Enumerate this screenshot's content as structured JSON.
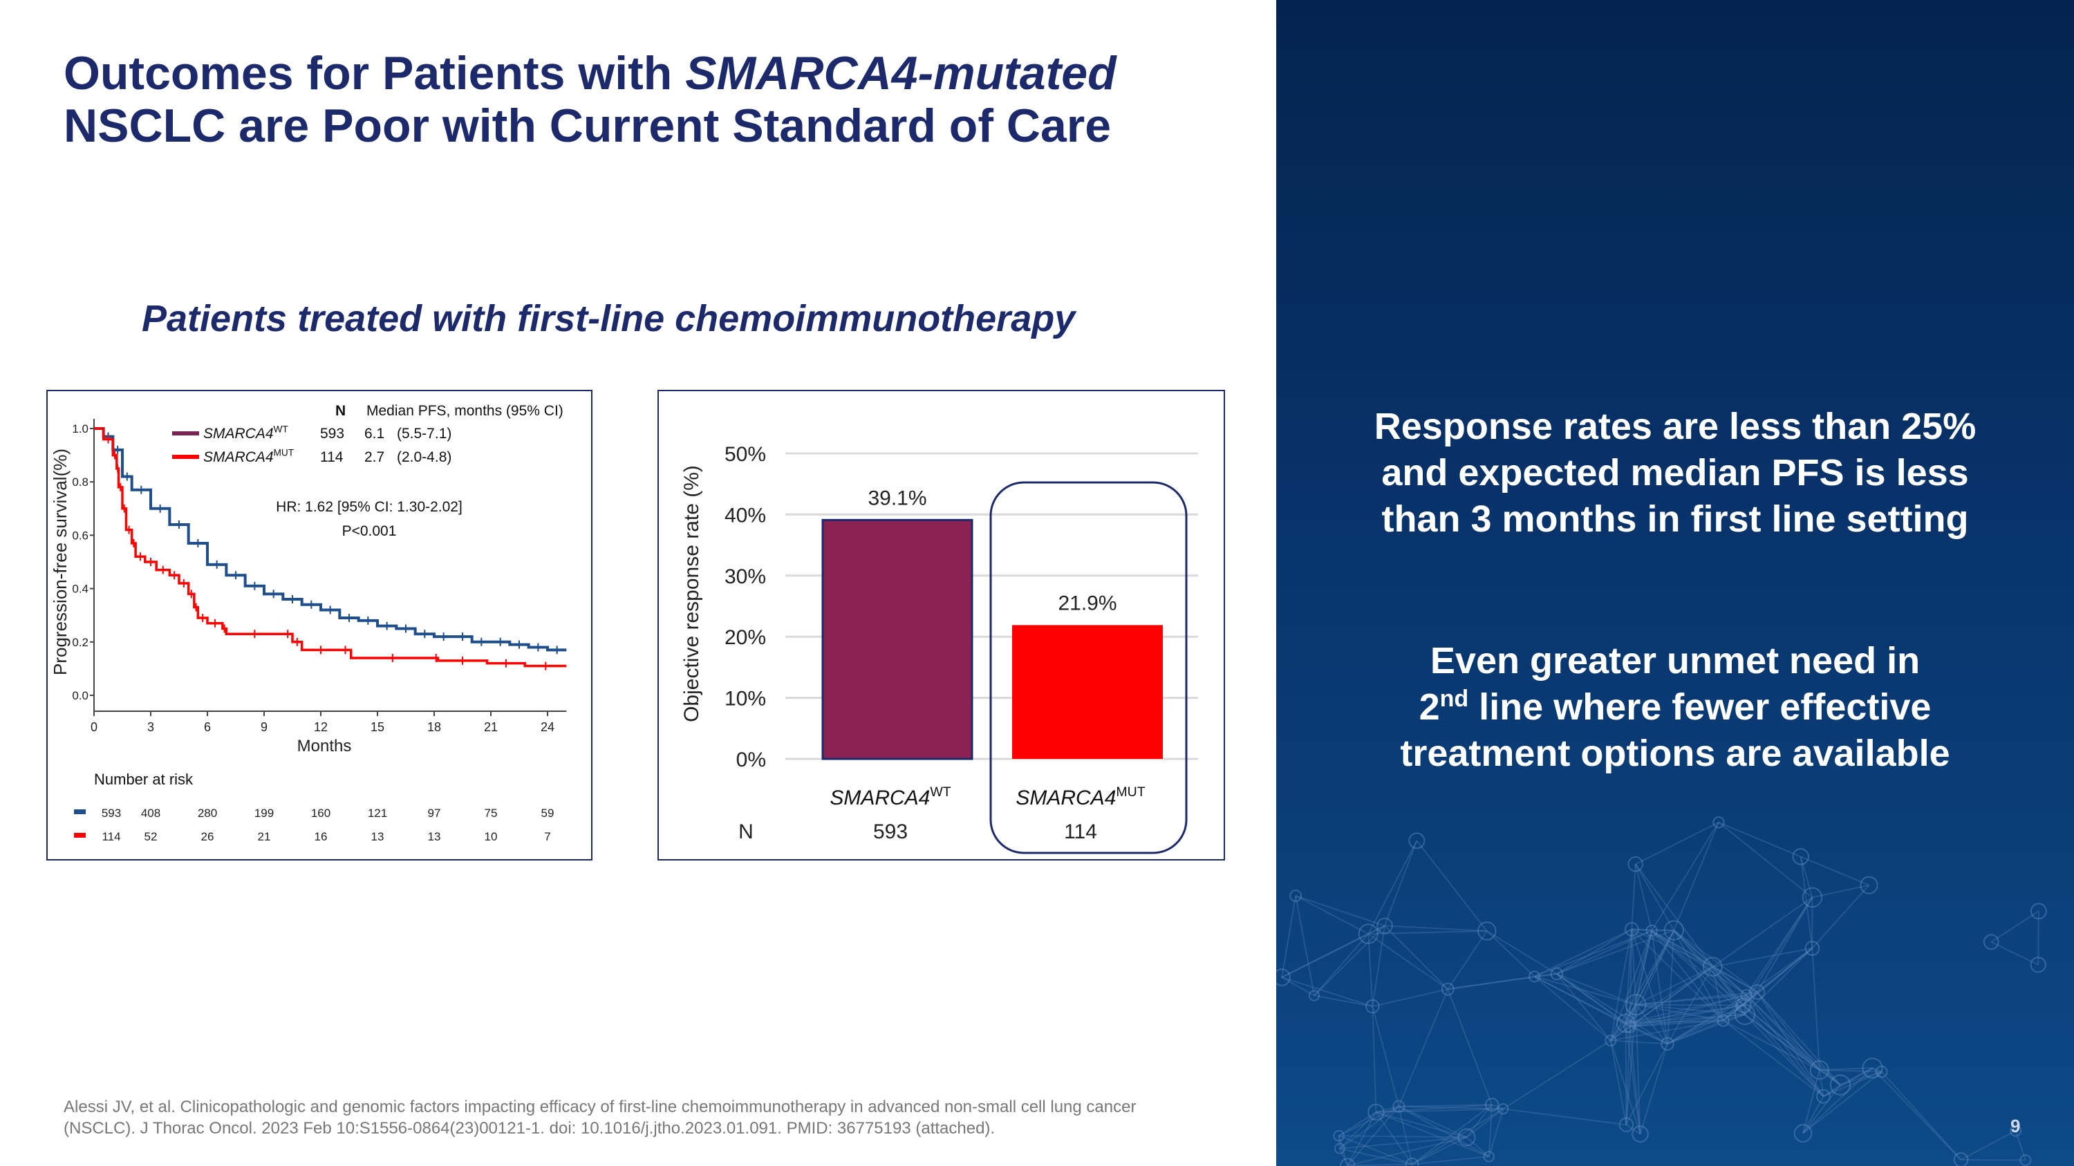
{
  "title": {
    "line1_prefix": "Outcomes for Patients with ",
    "line1_italic": "SMARCA4-mutated",
    "line2": "NSCLC are Poor with Current Standard of Care"
  },
  "subtitle": "Patients treated with first-line chemoimmunotherapy",
  "right_panel": {
    "text1": [
      "Response rates are less than 25%",
      "and expected median PFS is less",
      "than 3 months in first line setting"
    ],
    "text2_line1": "Even greater unmet need in",
    "text2_line2_num": "2",
    "text2_line2_sup": "nd",
    "text2_line2_rest": " line where fewer effective",
    "text2_line3": "treatment options are available"
  },
  "footnote": [
    "Alessi JV, et al. Clinicopathologic and genomic factors impacting efficacy of first-line chemoimmunotherapy in advanced non-small cell lung cancer",
    "(NSCLC). J Thorac Oncol. 2023 Feb 10:S1556-0864(23)00121-1. doi: 10.1016/j.jtho.2023.01.091. PMID: 36775193 (attached)."
  ],
  "page_number": "9",
  "colors": {
    "title": "#1c2a6b",
    "wt_km": "#1f4e8c",
    "wt_bar": "#8b2252",
    "mut": "#ff0000",
    "panel": "#08336b"
  },
  "chart_data": [
    {
      "type": "line",
      "xlabel": "Months",
      "ylabel": "Progression-free survival(%)",
      "xlim": [
        0,
        25
      ],
      "ylim": [
        0,
        1.0
      ],
      "x_ticks": [
        0,
        3,
        6,
        9,
        12,
        15,
        18,
        21,
        24
      ],
      "y_ticks": [
        "0.0",
        "0.2",
        "0.4",
        "0.6",
        "0.8",
        "1.0"
      ],
      "legend": {
        "header_n": "N",
        "header_median": "Median PFS, months (95% CI)",
        "entries": [
          {
            "name": "SMARCA4",
            "sup": "WT",
            "n": "593",
            "median": "6.1",
            "ci": "(5.5-7.1)"
          },
          {
            "name": "SMARCA4",
            "sup": "MUT",
            "n": "114",
            "median": "2.7",
            "ci": "(2.0-4.8)"
          }
        ]
      },
      "annotation": [
        "HR: 1.62 [95% CI: 1.30-2.02]",
        "P<0.001"
      ],
      "series": [
        {
          "name": "SMARCA4 WT",
          "color": "#1f4e8c",
          "x": [
            0,
            0.5,
            1,
            1.5,
            2,
            3,
            4,
            5,
            6,
            7,
            8,
            9,
            10,
            11,
            12,
            13,
            14,
            15,
            16,
            17,
            18,
            19,
            20,
            21,
            22,
            23,
            24,
            25
          ],
          "y": [
            1.0,
            0.97,
            0.92,
            0.82,
            0.77,
            0.7,
            0.64,
            0.57,
            0.49,
            0.45,
            0.41,
            0.38,
            0.36,
            0.34,
            0.32,
            0.29,
            0.28,
            0.26,
            0.25,
            0.23,
            0.22,
            0.22,
            0.2,
            0.2,
            0.19,
            0.18,
            0.17,
            0.17
          ]
        },
        {
          "name": "SMARCA4 MUT",
          "color": "#ff0000",
          "x": [
            0,
            0.5,
            1,
            1.2,
            1.3,
            1.5,
            1.7,
            2,
            2.2,
            2.7,
            3.3,
            4,
            4.5,
            5,
            5.3,
            5.5,
            6,
            6.8,
            7,
            10,
            10.5,
            11,
            13,
            13.6,
            18,
            18.2,
            20.8,
            22.8,
            25
          ],
          "y": [
            1.0,
            0.96,
            0.9,
            0.85,
            0.78,
            0.7,
            0.62,
            0.57,
            0.52,
            0.5,
            0.47,
            0.45,
            0.42,
            0.38,
            0.33,
            0.29,
            0.27,
            0.25,
            0.23,
            0.23,
            0.2,
            0.17,
            0.17,
            0.14,
            0.14,
            0.13,
            0.12,
            0.11,
            0.11
          ]
        }
      ],
      "number_at_risk": {
        "title": "Number at risk",
        "rows": [
          {
            "color": "#1f4e8c",
            "values": [
              "593",
              "408",
              "280",
              "199",
              "160",
              "121",
              "97",
              "75",
              "59"
            ]
          },
          {
            "color": "#ff0000",
            "values": [
              "114",
              "52",
              "26",
              "21",
              "16",
              "13",
              "13",
              "10",
              "7"
            ]
          }
        ]
      }
    },
    {
      "type": "bar",
      "ylabel": "Objective response rate (%)",
      "ylim": [
        0,
        50
      ],
      "y_ticks": [
        "0%",
        "10%",
        "20%",
        "30%",
        "40%",
        "50%"
      ],
      "grid": true,
      "categories": [
        {
          "name": "SMARCA4",
          "sup": "WT"
        },
        {
          "name": "SMARCA4",
          "sup": "MUT"
        }
      ],
      "values": [
        39.1,
        21.9
      ],
      "value_labels": [
        "39.1%",
        "21.9%"
      ],
      "bar_colors": [
        "#8b2252",
        "#ff0000"
      ],
      "n_label": "N",
      "n_values": [
        "593",
        "114"
      ],
      "highlighted": "SMARCA4 MUT"
    }
  ]
}
